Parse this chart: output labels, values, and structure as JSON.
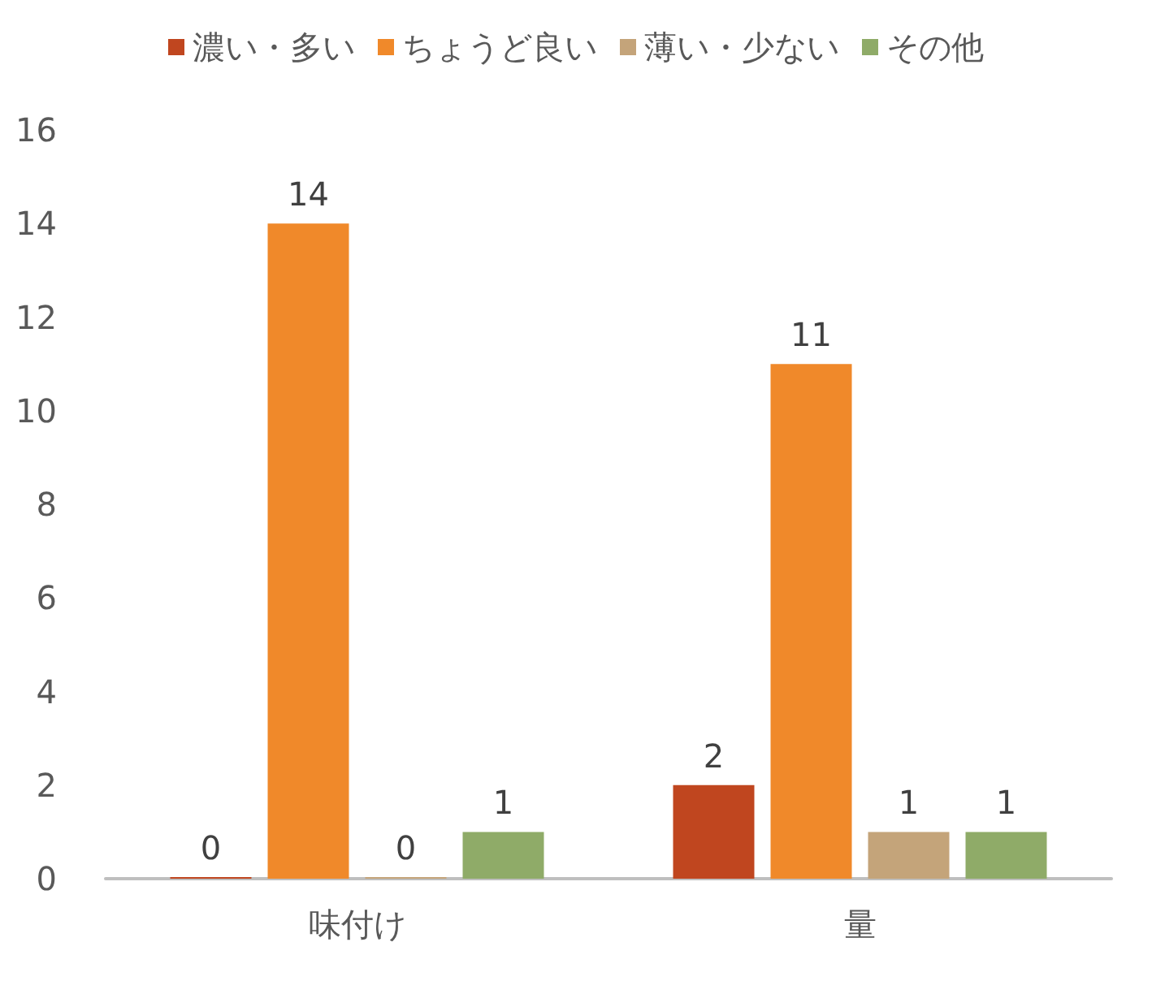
{
  "chart_data": {
    "type": "bar",
    "categories": [
      "味付け",
      "量"
    ],
    "series": [
      {
        "name": "濃い・多い",
        "color": "#c0461f",
        "values": [
          0,
          2
        ]
      },
      {
        "name": "ちょうど良い",
        "color": "#f0892a",
        "values": [
          14,
          11
        ]
      },
      {
        "name": "薄い・少ない",
        "color": "#c4a47a",
        "values": [
          0,
          1
        ]
      },
      {
        "name": "その他",
        "color": "#8fab68",
        "values": [
          1,
          1
        ]
      }
    ],
    "ylim": [
      0,
      16
    ],
    "yticks": [
      0,
      2,
      4,
      6,
      8,
      10,
      12,
      14,
      16
    ],
    "grid": false,
    "legend": "top",
    "data_labels": true
  }
}
